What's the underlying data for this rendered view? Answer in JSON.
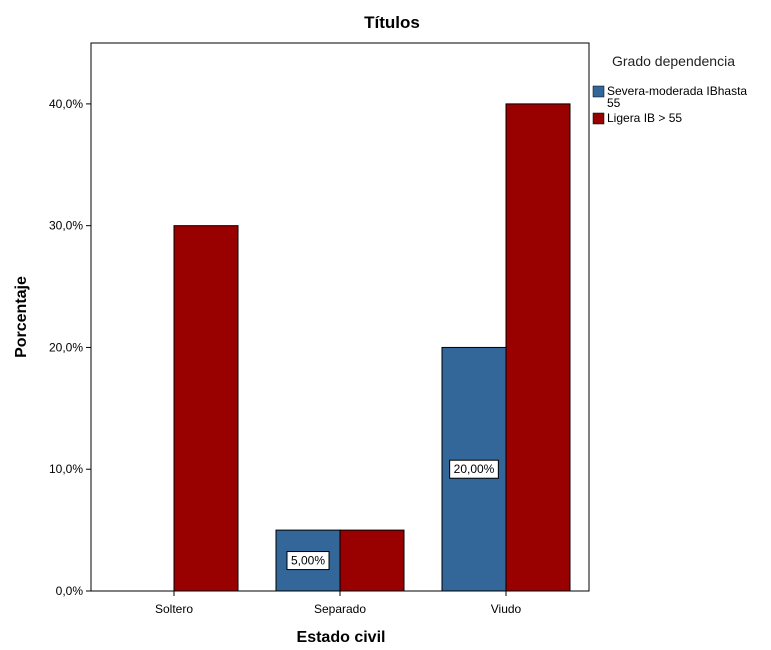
{
  "chart_data": {
    "type": "bar",
    "title": "Títulos",
    "xlabel": "Estado civil",
    "ylabel": "Porcentaje",
    "categories": [
      "Soltero",
      "Separado",
      "Viudo"
    ],
    "series": [
      {
        "name": "Severa-moderada IBhasta 55",
        "values": [
          0,
          5,
          20
        ],
        "data_labels": [
          "",
          "5,00%",
          "20,00%"
        ]
      },
      {
        "name": "Ligera IB > 55",
        "values": [
          30,
          5,
          40
        ],
        "data_labels": [
          "",
          "",
          ""
        ]
      }
    ],
    "ylim": [
      0,
      45
    ],
    "yticks": [
      0,
      10,
      20,
      30,
      40
    ],
    "ytick_labels": [
      "0,0%",
      "10,0%",
      "20,0%",
      "30,0%",
      "40,0%"
    ],
    "legend_title": "Grado dependencia",
    "legend_position": "right",
    "grid": false,
    "colors": {
      "Severa-moderada IBhasta 55": "#336699",
      "Ligera IB > 55": "#990000"
    }
  }
}
